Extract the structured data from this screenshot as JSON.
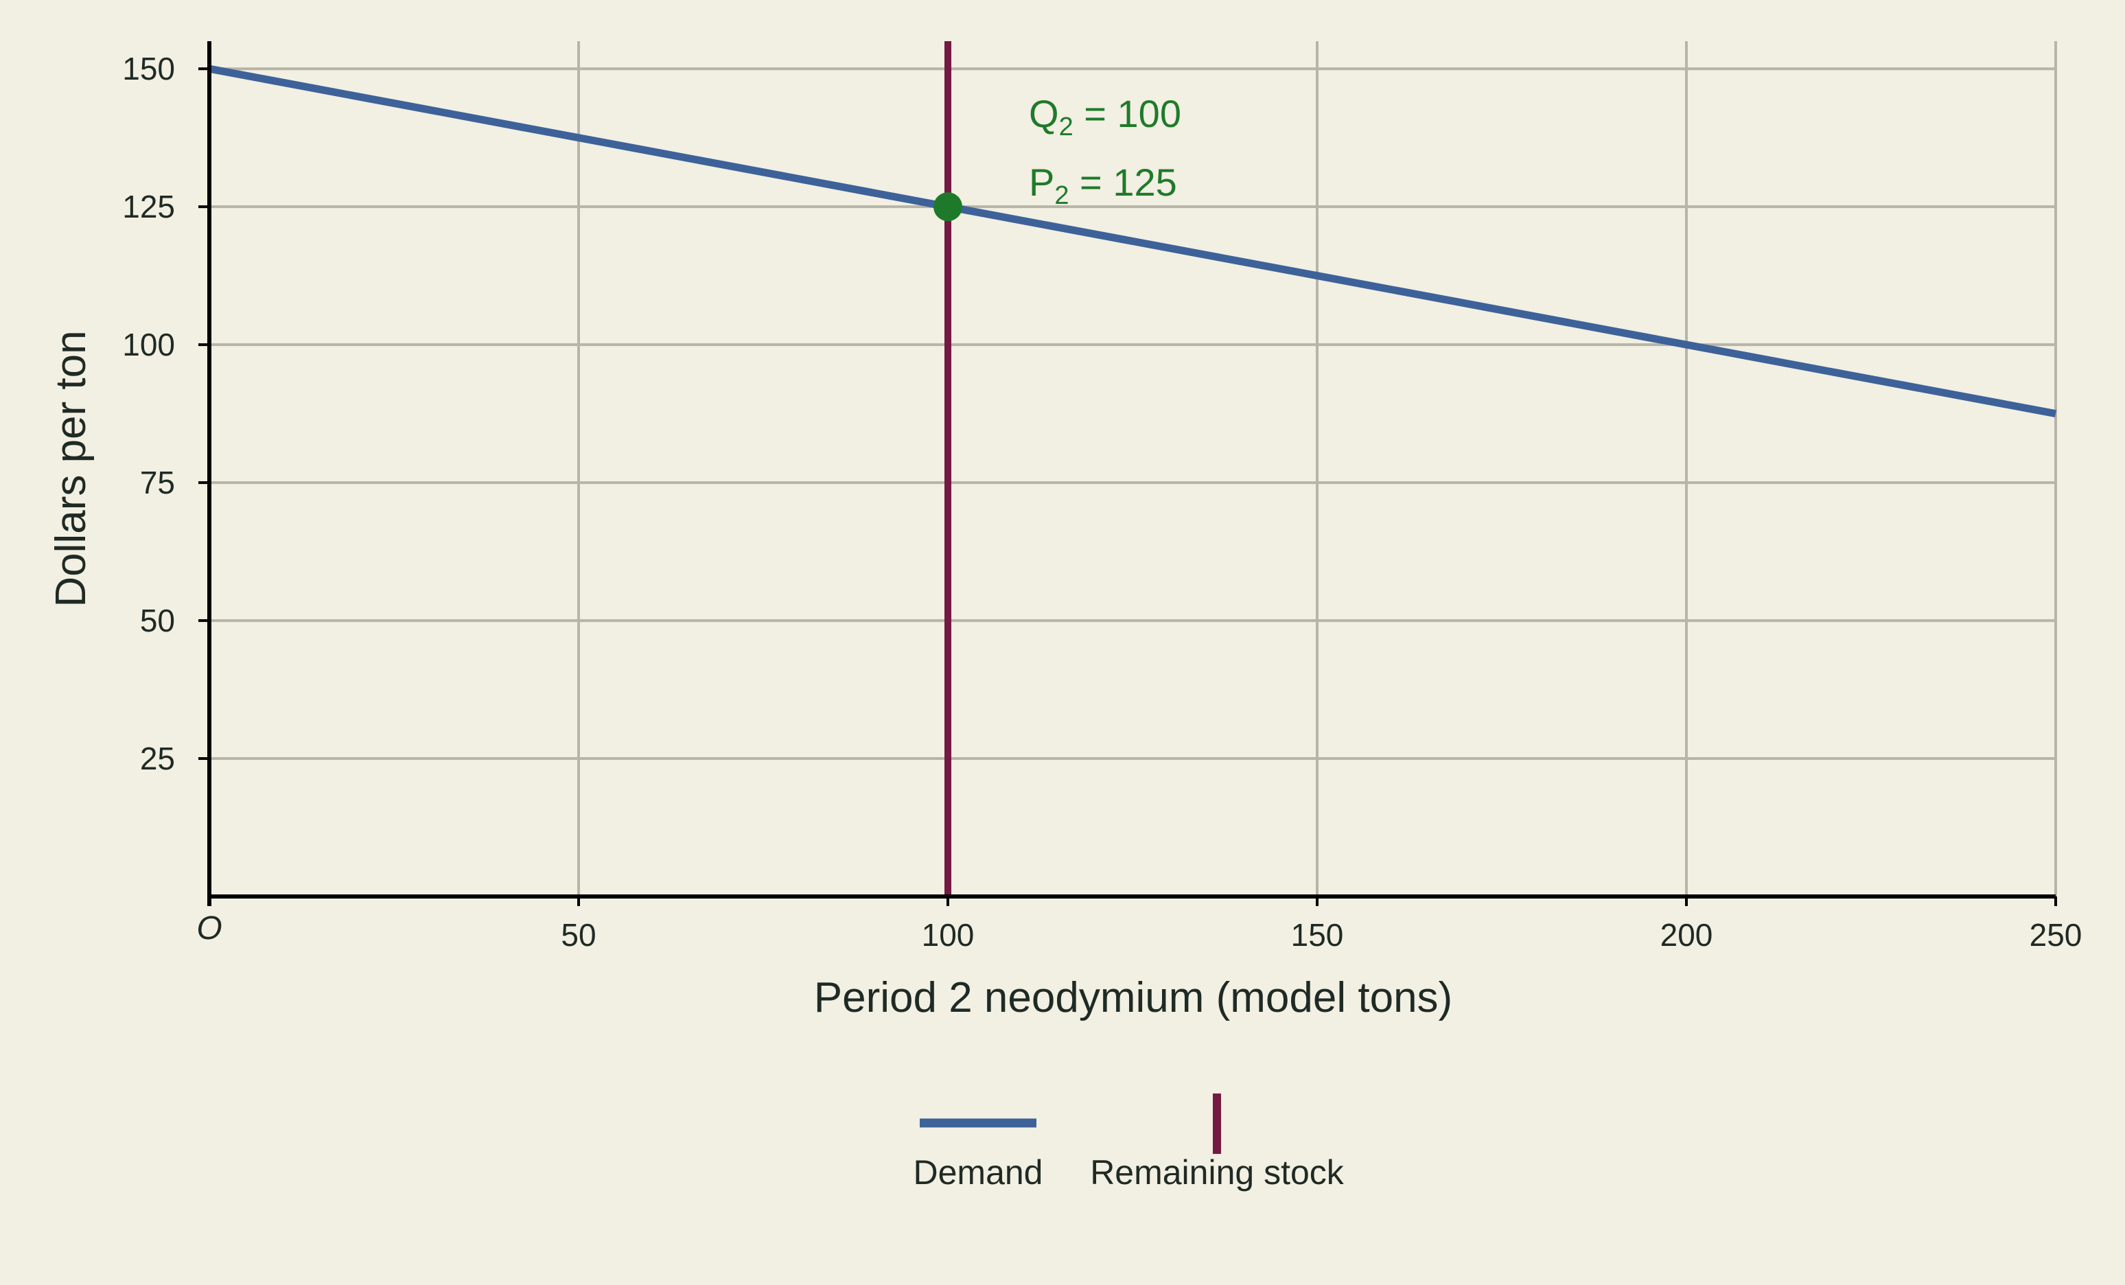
{
  "chart_data": {
    "type": "line",
    "xlabel": "Period 2 neodymium (model tons)",
    "ylabel": "Dollars per ton",
    "xlim": [
      0,
      250
    ],
    "ylim": [
      0,
      155
    ],
    "x_ticks": [
      50,
      100,
      150,
      200,
      250
    ],
    "y_ticks": [
      25,
      50,
      75,
      100,
      125,
      150
    ],
    "origin_label": "O",
    "grid": true,
    "series": [
      {
        "name": "Demand",
        "x": [
          0,
          250
        ],
        "y": [
          150,
          87.5
        ],
        "color": "#3d6299"
      },
      {
        "name": "Remaining stock",
        "x": [
          100,
          100
        ],
        "y": [
          0,
          155
        ],
        "color": "#741a42"
      }
    ],
    "point": {
      "x": 100,
      "y": 125,
      "color": "#1e7a2a"
    },
    "annotations": [
      {
        "var": "Q",
        "sub": "2",
        "text": " = 100"
      },
      {
        "var": "P",
        "sub": "2",
        "text": " = 125"
      }
    ],
    "legend": {
      "placement": "bottom",
      "items": [
        "Demand",
        "Remaining stock"
      ]
    },
    "colors": {
      "background": "#f2efe3",
      "grid": "#b7b4a8",
      "axis": "#000000",
      "annotation": "#1e7a2a"
    }
  }
}
